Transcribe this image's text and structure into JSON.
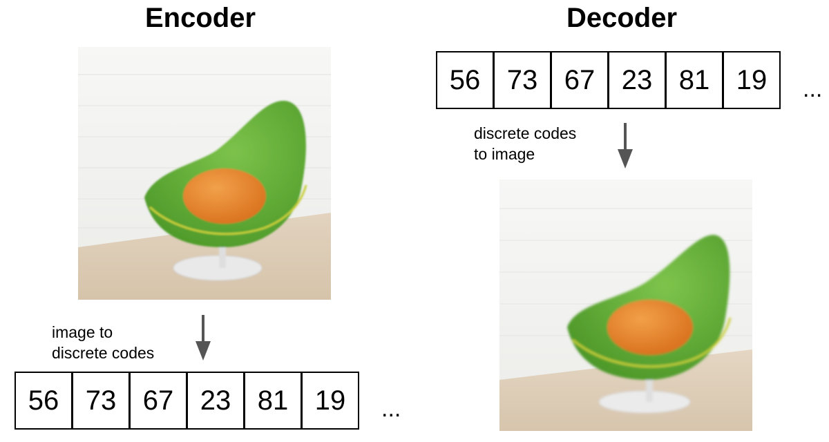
{
  "encoder": {
    "title": "Encoder",
    "caption_line1": "image to",
    "caption_line2": "discrete codes",
    "codes": [
      "56",
      "73",
      "67",
      "23",
      "81",
      "19"
    ],
    "ellipsis": "..."
  },
  "decoder": {
    "title": "Decoder",
    "caption_line1": "discrete codes",
    "caption_line2": "to image",
    "codes": [
      "56",
      "73",
      "67",
      "23",
      "81",
      "19"
    ],
    "ellipsis": "..."
  },
  "colors": {
    "chair_green": "#5aa632",
    "cushion_orange": "#e8842a",
    "arrow_gray": "#555555",
    "wall": "#f1f1ef",
    "floor": "#dccbb4"
  }
}
